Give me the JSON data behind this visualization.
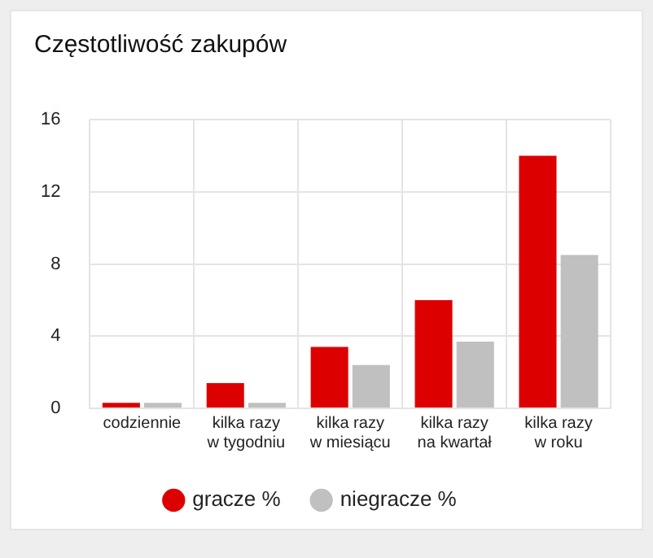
{
  "chart_data": {
    "type": "bar",
    "title": "Częstotliwość zakupów",
    "categories": [
      "codziennie",
      "kilka razy\nw tygodniu",
      "kilka razy\nw miesiącu",
      "kilka razy\nna kwartał",
      "kilka razy\nw roku"
    ],
    "series": [
      {
        "name": "gracze %",
        "color": "#dd0000",
        "values": [
          0.3,
          1.4,
          3.4,
          6,
          14
        ]
      },
      {
        "name": "niegracze %",
        "color": "#c0c0c0",
        "values": [
          0.3,
          0.3,
          2.4,
          3.7,
          8.5
        ]
      }
    ],
    "ylim": [
      0,
      16
    ],
    "yticks": [
      0,
      4,
      8,
      12,
      16
    ],
    "grid": true,
    "legend": "bottom",
    "marker": "circle"
  }
}
